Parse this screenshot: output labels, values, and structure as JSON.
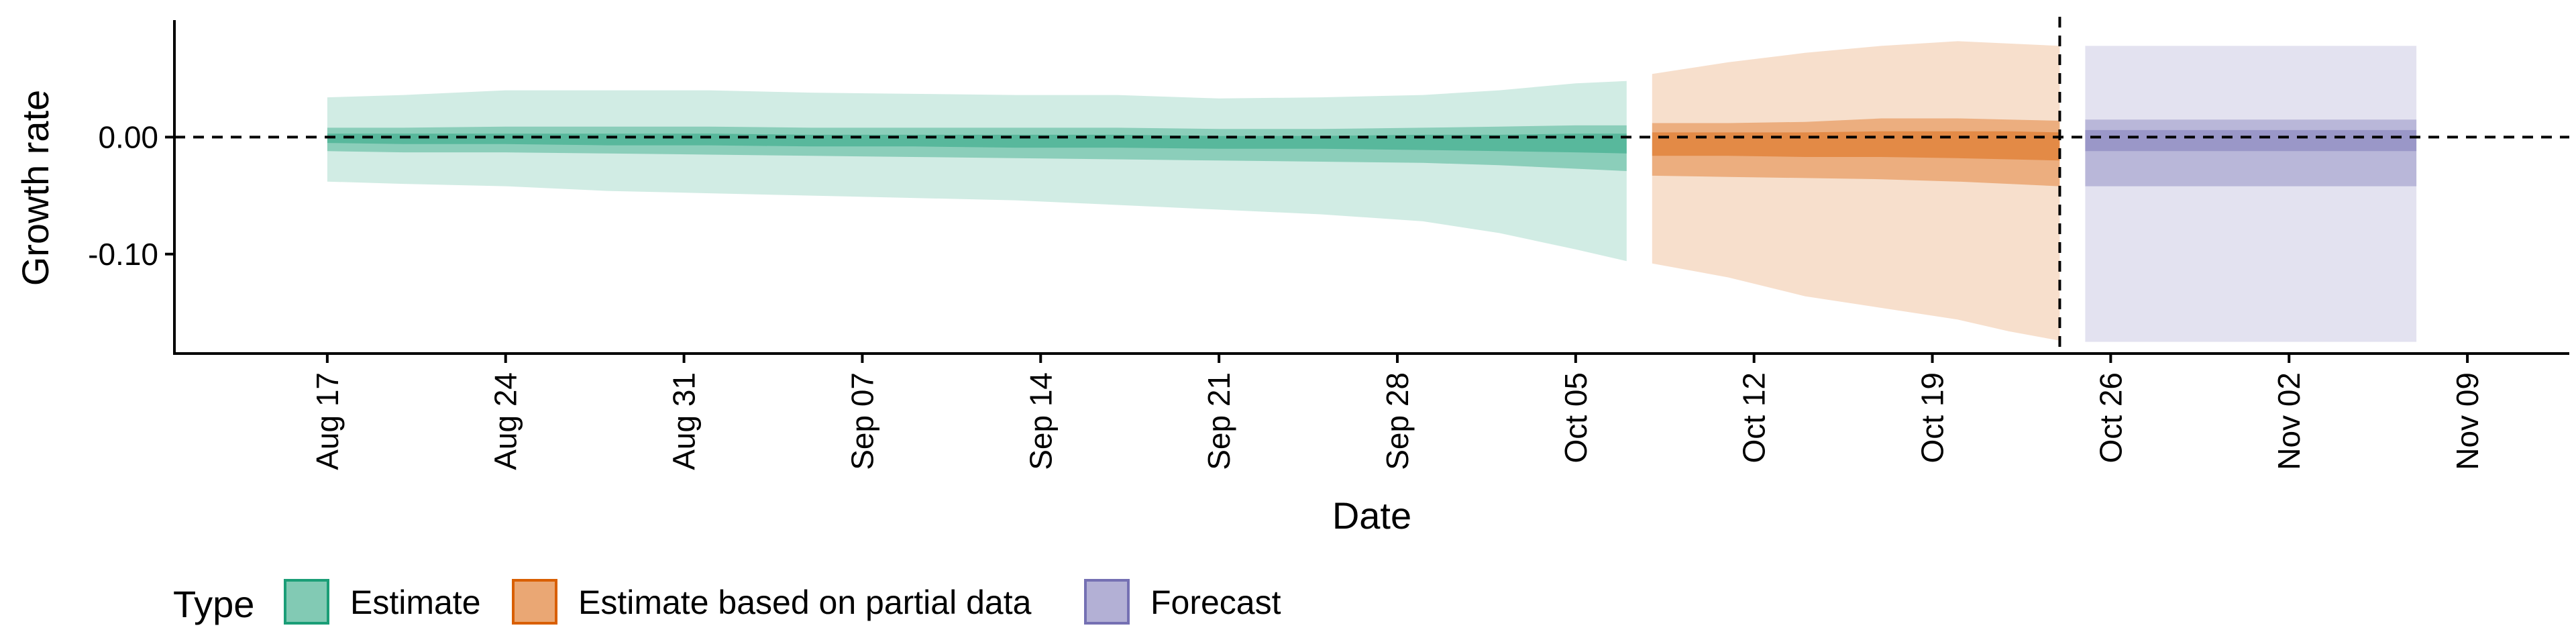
{
  "chart_data": {
    "type": "area",
    "title": "",
    "xlabel": "Date",
    "ylabel": "Growth rate",
    "ylim": [
      -0.185,
      0.1
    ],
    "xlim": [
      "2020-08-11",
      "2020-11-13"
    ],
    "y_ticks": [
      0.0,
      -0.1
    ],
    "y_tick_labels": [
      "0.00",
      "-0.10"
    ],
    "x_ticks": [
      "2020-08-17",
      "2020-08-24",
      "2020-08-31",
      "2020-09-07",
      "2020-09-14",
      "2020-09-21",
      "2020-09-28",
      "2020-10-05",
      "2020-10-12",
      "2020-10-19",
      "2020-10-26",
      "2020-11-02",
      "2020-11-09"
    ],
    "x_tick_labels": [
      "Aug 17",
      "Aug 24",
      "Aug 31",
      "Sep 07",
      "Sep 14",
      "Sep 21",
      "Sep 28",
      "Oct 05",
      "Oct 12",
      "Oct 19",
      "Oct 26",
      "Nov 02",
      "Nov 09"
    ],
    "reference_lines": {
      "horizontal_y": 0.0,
      "vertical_x": "2020-10-24"
    },
    "legend": {
      "title": "Type",
      "position": "bottom-left",
      "items": [
        {
          "label": "Estimate",
          "color": "#1b9e77"
        },
        {
          "label": "Estimate based on partial data",
          "color": "#d95f02"
        },
        {
          "label": "Forecast",
          "color": "#7570b3"
        }
      ]
    },
    "series": [
      {
        "name": "Estimate",
        "color": "#1b9e77",
        "points": [
          {
            "x": "2020-08-17",
            "lo90": -0.038,
            "hi90": 0.034,
            "lo50": -0.012,
            "hi50": 0.008,
            "lo20": -0.005,
            "hi20": 0.003
          },
          {
            "x": "2020-08-20",
            "lo90": -0.04,
            "hi90": 0.036,
            "lo50": -0.013,
            "hi50": 0.008,
            "lo20": -0.006,
            "hi20": 0.003
          },
          {
            "x": "2020-08-24",
            "lo90": -0.042,
            "hi90": 0.04,
            "lo50": -0.013,
            "hi50": 0.009,
            "lo20": -0.006,
            "hi20": 0.003
          },
          {
            "x": "2020-08-28",
            "lo90": -0.046,
            "hi90": 0.04,
            "lo50": -0.014,
            "hi50": 0.009,
            "lo20": -0.007,
            "hi20": 0.003
          },
          {
            "x": "2020-09-01",
            "lo90": -0.048,
            "hi90": 0.04,
            "lo50": -0.015,
            "hi50": 0.009,
            "lo20": -0.007,
            "hi20": 0.003
          },
          {
            "x": "2020-09-05",
            "lo90": -0.05,
            "hi90": 0.038,
            "lo50": -0.016,
            "hi50": 0.008,
            "lo20": -0.008,
            "hi20": 0.002
          },
          {
            "x": "2020-09-09",
            "lo90": -0.052,
            "hi90": 0.037,
            "lo50": -0.017,
            "hi50": 0.008,
            "lo20": -0.008,
            "hi20": 0.002
          },
          {
            "x": "2020-09-13",
            "lo90": -0.054,
            "hi90": 0.036,
            "lo50": -0.018,
            "hi50": 0.008,
            "lo20": -0.009,
            "hi20": 0.002
          },
          {
            "x": "2020-09-17",
            "lo90": -0.058,
            "hi90": 0.036,
            "lo50": -0.019,
            "hi50": 0.008,
            "lo20": -0.009,
            "hi20": 0.002
          },
          {
            "x": "2020-09-21",
            "lo90": -0.062,
            "hi90": 0.033,
            "lo50": -0.02,
            "hi50": 0.007,
            "lo20": -0.01,
            "hi20": 0.001
          },
          {
            "x": "2020-09-25",
            "lo90": -0.066,
            "hi90": 0.034,
            "lo50": -0.021,
            "hi50": 0.007,
            "lo20": -0.01,
            "hi20": 0.001
          },
          {
            "x": "2020-09-29",
            "lo90": -0.072,
            "hi90": 0.036,
            "lo50": -0.022,
            "hi50": 0.008,
            "lo20": -0.011,
            "hi20": 0.002
          },
          {
            "x": "2020-10-02",
            "lo90": -0.082,
            "hi90": 0.04,
            "lo50": -0.024,
            "hi50": 0.009,
            "lo20": -0.012,
            "hi20": 0.002
          },
          {
            "x": "2020-10-05",
            "lo90": -0.096,
            "hi90": 0.046,
            "lo50": -0.027,
            "hi50": 0.01,
            "lo20": -0.013,
            "hi20": 0.003
          },
          {
            "x": "2020-10-07",
            "lo90": -0.106,
            "hi90": 0.048,
            "lo50": -0.029,
            "hi50": 0.01,
            "lo20": -0.014,
            "hi20": 0.003
          }
        ]
      },
      {
        "name": "Estimate based on partial data",
        "color": "#d95f02",
        "points": [
          {
            "x": "2020-10-08",
            "lo90": -0.108,
            "hi90": 0.054,
            "lo50": -0.033,
            "hi50": 0.012,
            "lo20": -0.016,
            "hi20": 0.004
          },
          {
            "x": "2020-10-11",
            "lo90": -0.12,
            "hi90": 0.064,
            "lo50": -0.034,
            "hi50": 0.012,
            "lo20": -0.016,
            "hi20": 0.004
          },
          {
            "x": "2020-10-14",
            "lo90": -0.136,
            "hi90": 0.072,
            "lo50": -0.035,
            "hi50": 0.013,
            "lo20": -0.017,
            "hi20": 0.004
          },
          {
            "x": "2020-10-17",
            "lo90": -0.146,
            "hi90": 0.078,
            "lo50": -0.036,
            "hi50": 0.016,
            "lo20": -0.017,
            "hi20": 0.005
          },
          {
            "x": "2020-10-20",
            "lo90": -0.156,
            "hi90": 0.082,
            "lo50": -0.038,
            "hi50": 0.016,
            "lo20": -0.018,
            "hi20": 0.005
          },
          {
            "x": "2020-10-22",
            "lo90": -0.166,
            "hi90": 0.08,
            "lo50": -0.04,
            "hi50": 0.015,
            "lo20": -0.019,
            "hi20": 0.005
          },
          {
            "x": "2020-10-24",
            "lo90": -0.174,
            "hi90": 0.078,
            "lo50": -0.042,
            "hi50": 0.014,
            "lo20": -0.02,
            "hi20": 0.004
          }
        ]
      },
      {
        "name": "Forecast",
        "color": "#7570b3",
        "points": [
          {
            "x": "2020-10-25",
            "lo90": -0.175,
            "hi90": 0.078,
            "lo50": -0.042,
            "hi50": 0.015,
            "lo20": -0.012,
            "hi20": 0.006
          },
          {
            "x": "2020-11-07",
            "lo90": -0.175,
            "hi90": 0.078,
            "lo50": -0.042,
            "hi50": 0.015,
            "lo20": -0.012,
            "hi20": 0.006
          }
        ]
      }
    ]
  }
}
